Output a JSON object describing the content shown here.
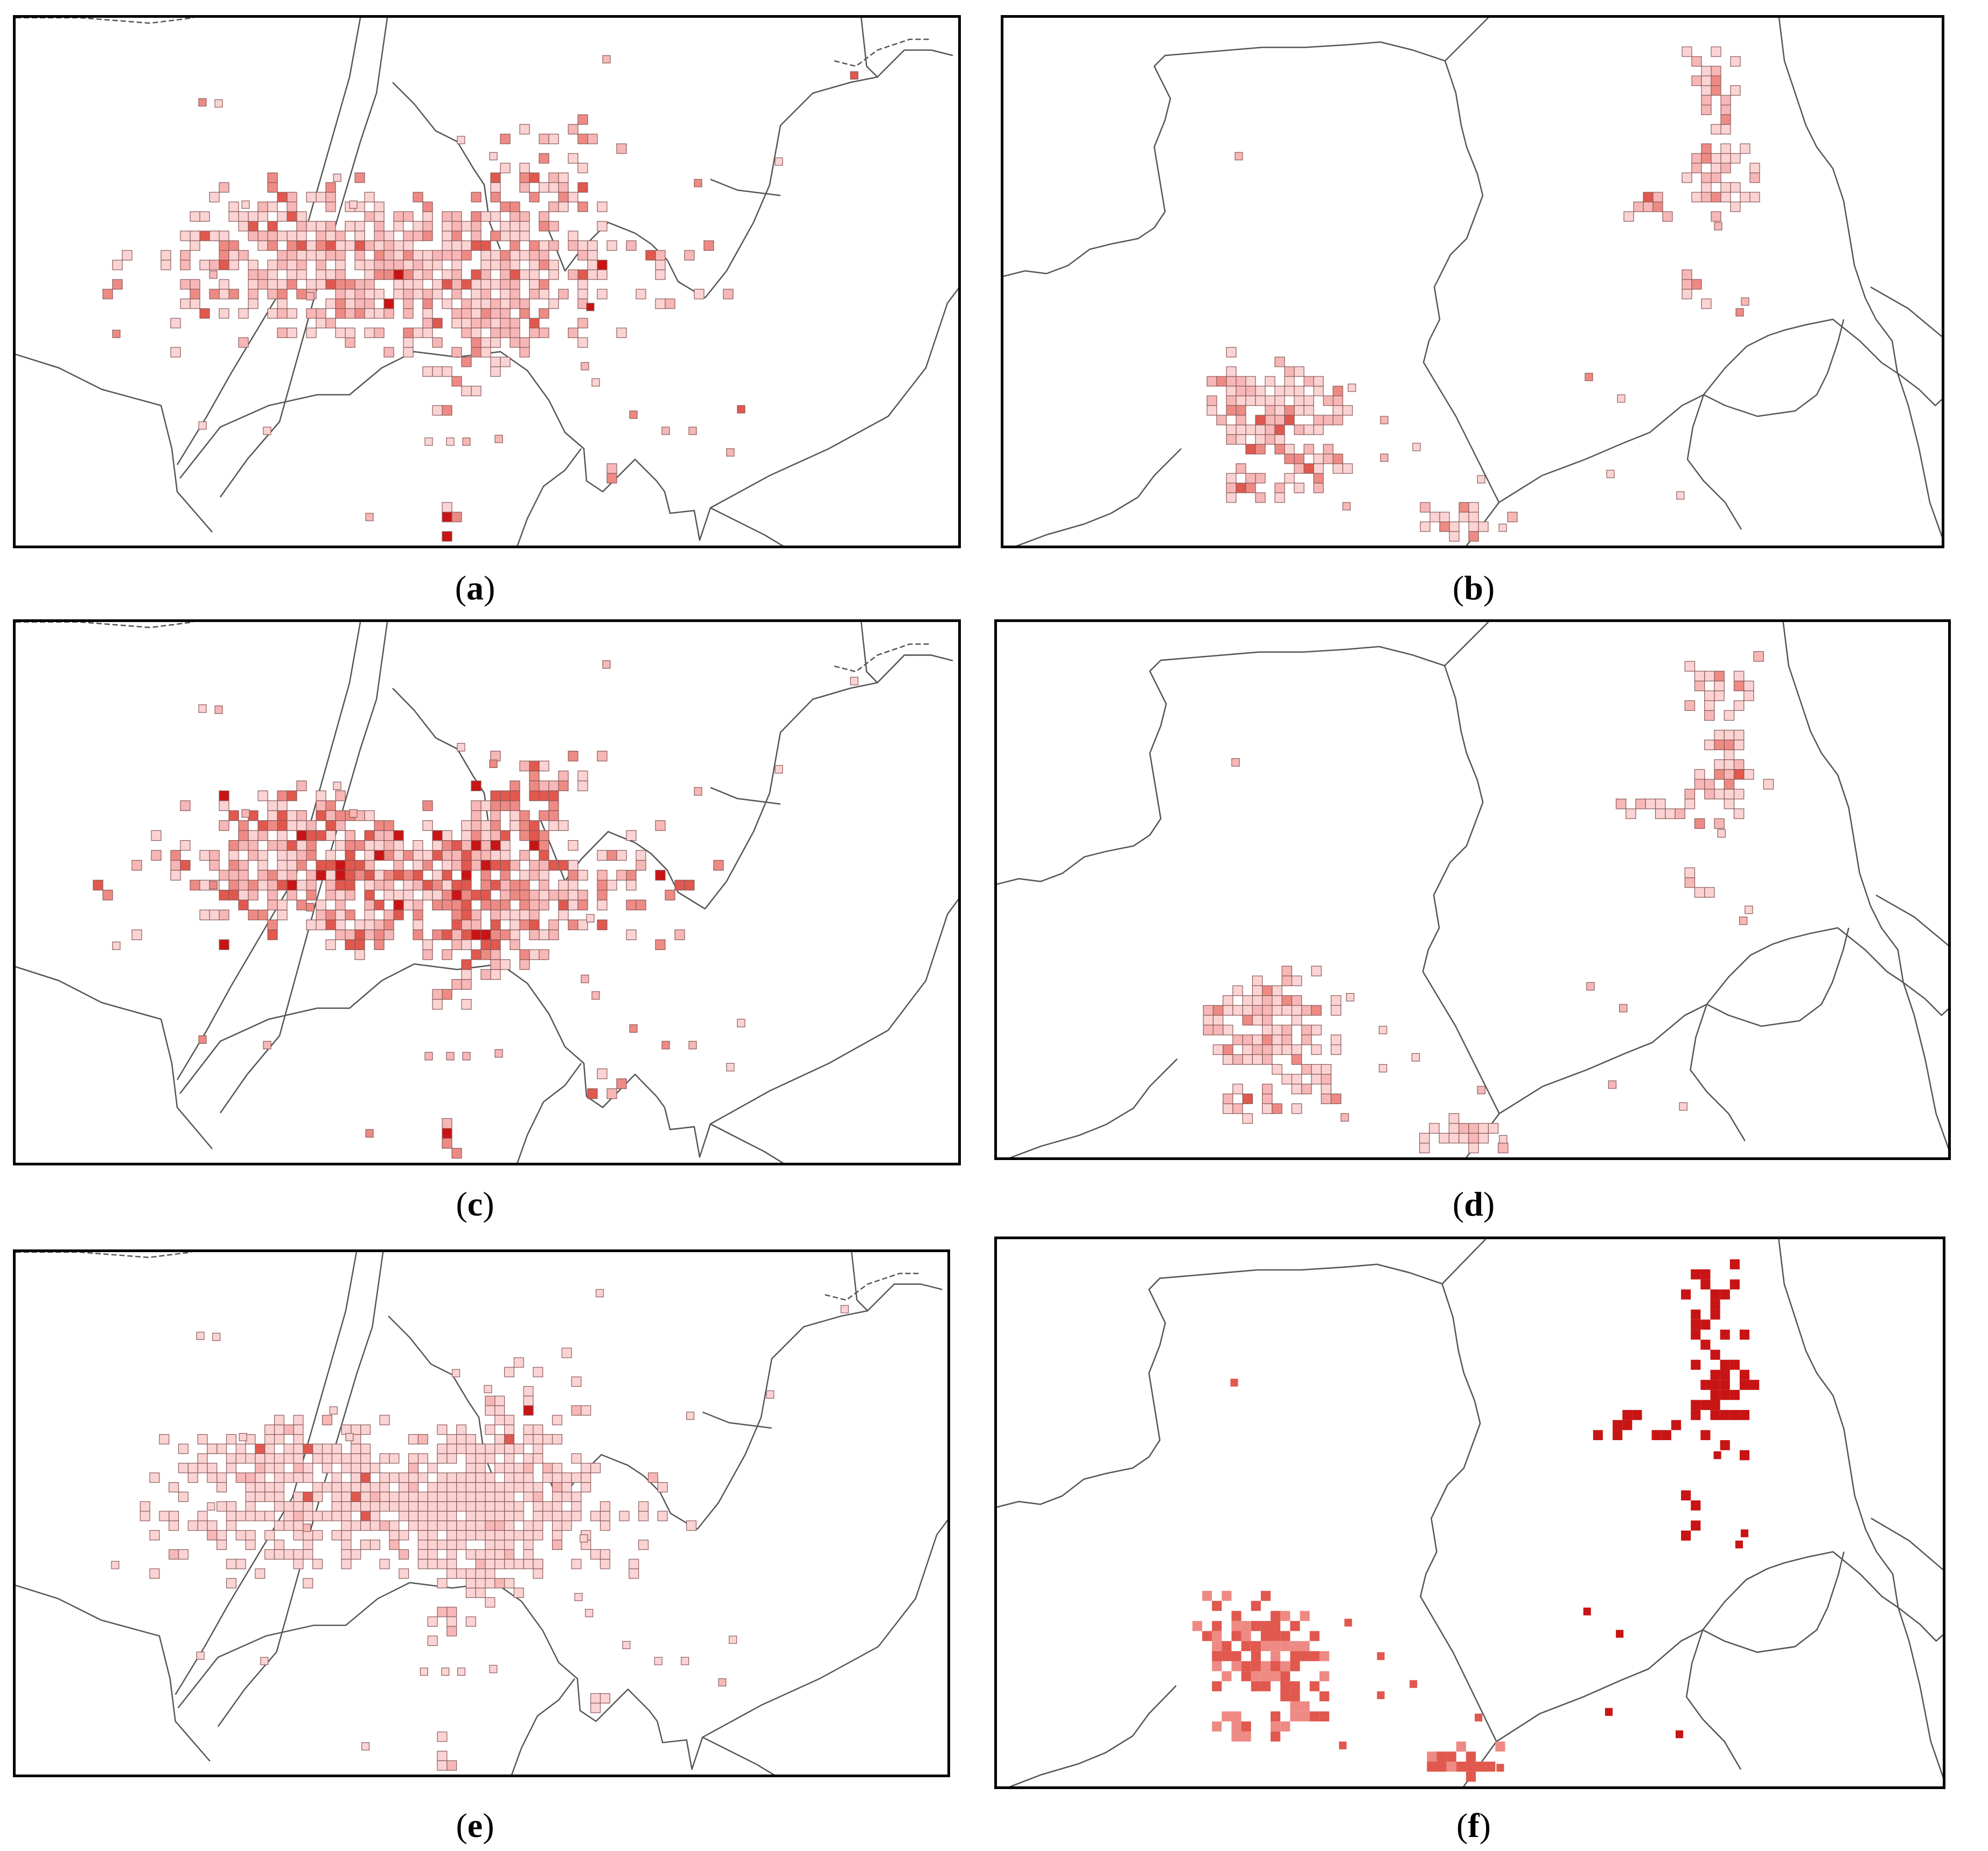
{
  "figure": {
    "panels": [
      {
        "id": "a",
        "caption": "a",
        "region": "west",
        "palette": "mixed"
      },
      {
        "id": "b",
        "caption": "b",
        "region": "east",
        "palette": "mixed"
      },
      {
        "id": "c",
        "caption": "c",
        "region": "west",
        "palette": "mixed-strong"
      },
      {
        "id": "d",
        "caption": "d",
        "region": "east",
        "palette": "pale"
      },
      {
        "id": "e",
        "caption": "e",
        "region": "west",
        "palette": "pale-uniform"
      },
      {
        "id": "f",
        "caption": "f",
        "region": "east",
        "palette": "saturated"
      }
    ],
    "colors": {
      "palest": "#fbd3d3",
      "pale": "#f7b7b7",
      "medium": "#ee8a84",
      "strong": "#e0584e",
      "darkest": "#c81414",
      "boundary": "#555555",
      "grid_outline": "#8a5a5a"
    }
  }
}
